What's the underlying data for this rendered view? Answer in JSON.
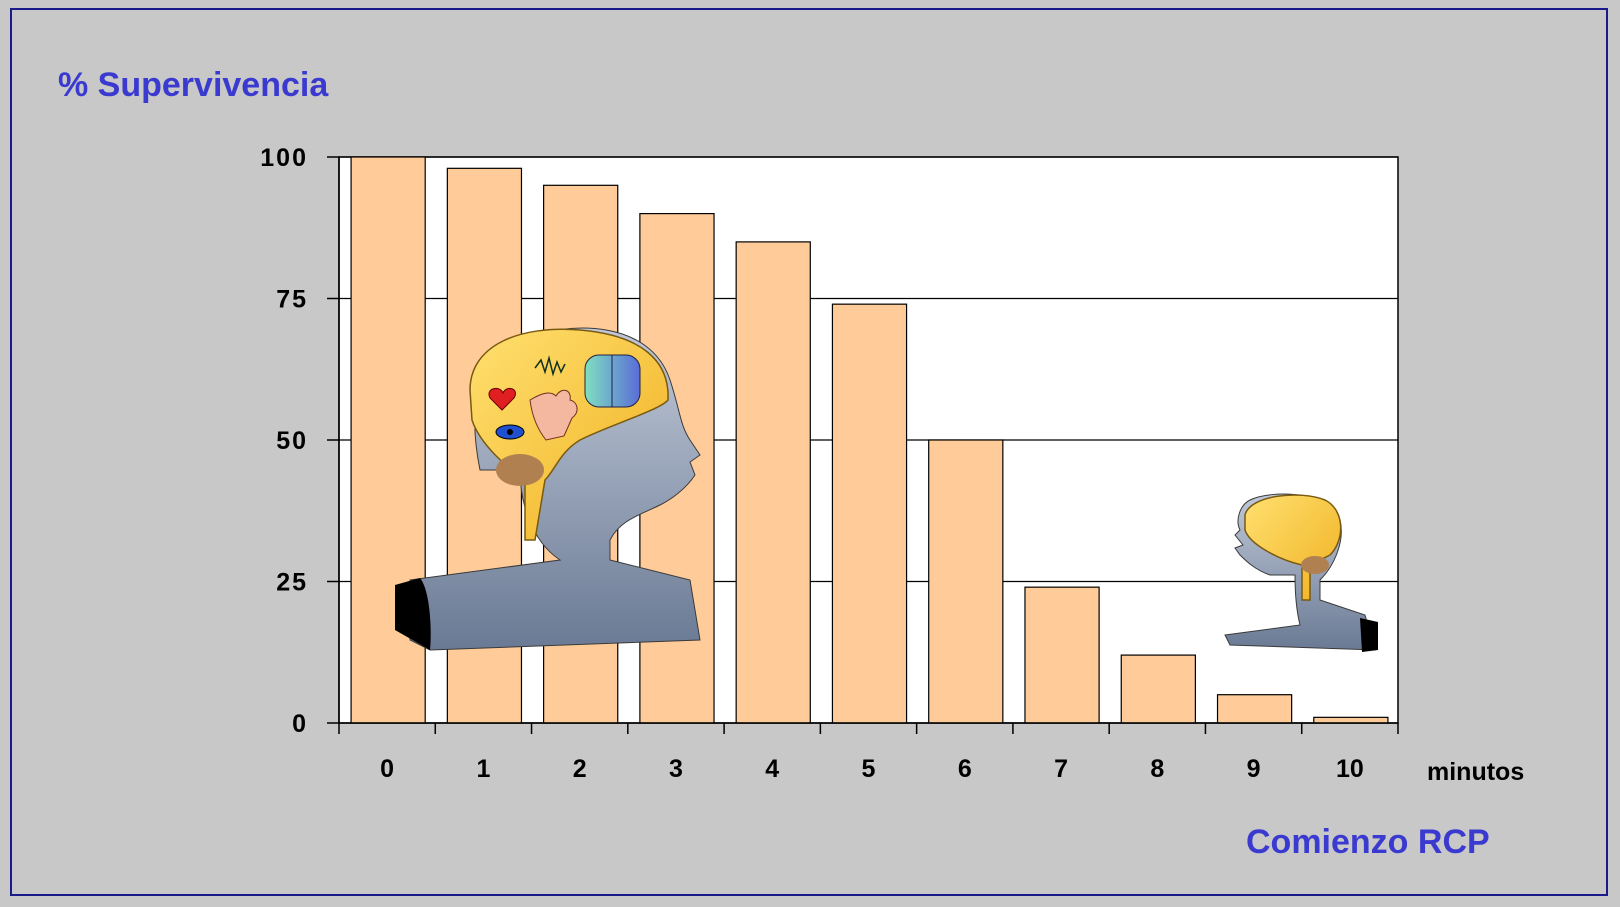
{
  "colors": {
    "background": "#c8c8c8",
    "plot_area": "#ffffff",
    "bar_fill": "#ffcc99",
    "title_color": "#3a3ad0"
  },
  "labels": {
    "y_title": "% Supervivencia",
    "x_unit": "minutos",
    "x_title": "Comienzo RCP"
  },
  "chart_data": {
    "type": "bar",
    "categories": [
      "0",
      "1",
      "2",
      "3",
      "4",
      "5",
      "6",
      "7",
      "8",
      "9",
      "10"
    ],
    "values": [
      100,
      98,
      95,
      90,
      85,
      74,
      50,
      24,
      12,
      5,
      1
    ],
    "ylim": [
      0,
      100
    ],
    "yticks": [
      0,
      25,
      50,
      75,
      100
    ],
    "grid": "horizontal",
    "ylabel": "% Supervivencia",
    "xlabel": "Comienzo RCP",
    "x_unit": "minutos"
  },
  "illustrations": [
    {
      "name": "head-brain-large-icon",
      "description": "head silhouette with brain showing heart, hand, eye, face icons"
    },
    {
      "name": "head-brain-small-icon",
      "description": "small head silhouette with brain"
    }
  ]
}
